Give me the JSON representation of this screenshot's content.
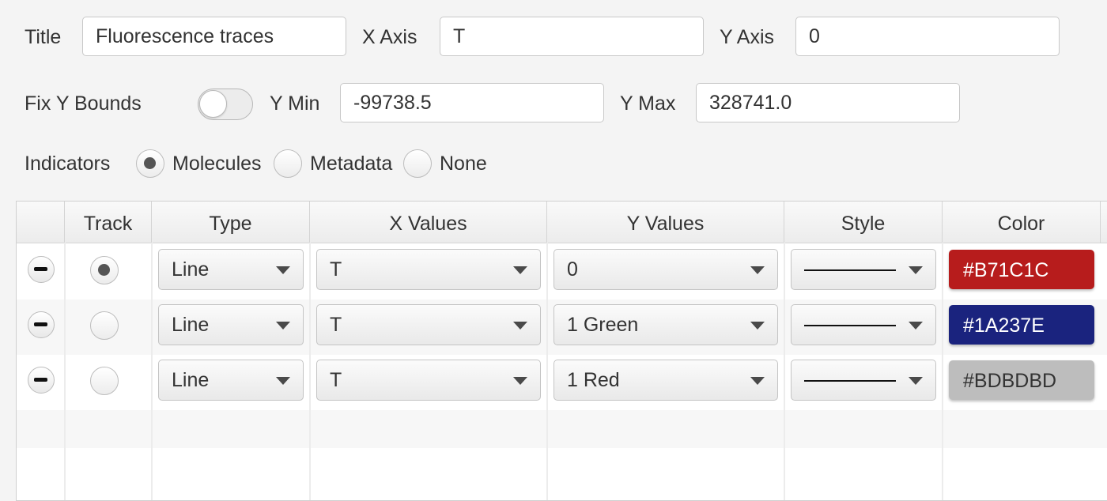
{
  "form": {
    "title_label": "Title",
    "title_value": "Fluorescence traces",
    "xaxis_label": "X Axis",
    "xaxis_value": "T",
    "yaxis_label": "Y Axis",
    "yaxis_value": "0",
    "fix_y_label": "Fix Y Bounds",
    "fix_y_on": false,
    "ymin_label": "Y Min",
    "ymin_value": "-99738.5",
    "ymax_label": "Y Max",
    "ymax_value": "328741.0",
    "indicators_label": "Indicators",
    "indicator_options": [
      "Molecules",
      "Metadata",
      "None"
    ],
    "indicator_selected": "Molecules"
  },
  "table": {
    "headers": [
      "",
      "Track",
      "Type",
      "X Values",
      "Y Values",
      "Style",
      "Color"
    ],
    "rows": [
      {
        "track": true,
        "type": "Line",
        "x": "T",
        "y": "0",
        "style": "solid-line",
        "color_label": "#B71C1C",
        "color": "#B71C1C",
        "text_color": "#ffffff"
      },
      {
        "track": false,
        "type": "Line",
        "x": "T",
        "y": "1 Green",
        "style": "solid-line",
        "color_label": "#1A237E",
        "color": "#1A237E",
        "text_color": "#ffffff"
      },
      {
        "track": false,
        "type": "Line",
        "x": "T",
        "y": "1 Red",
        "style": "solid-line",
        "color_label": "#BDBDBD",
        "color": "#BDBDBD",
        "text_color": "#333333"
      }
    ]
  },
  "icons": {
    "remove": "minus-circle-icon",
    "dropdown": "chevron-down-icon"
  }
}
